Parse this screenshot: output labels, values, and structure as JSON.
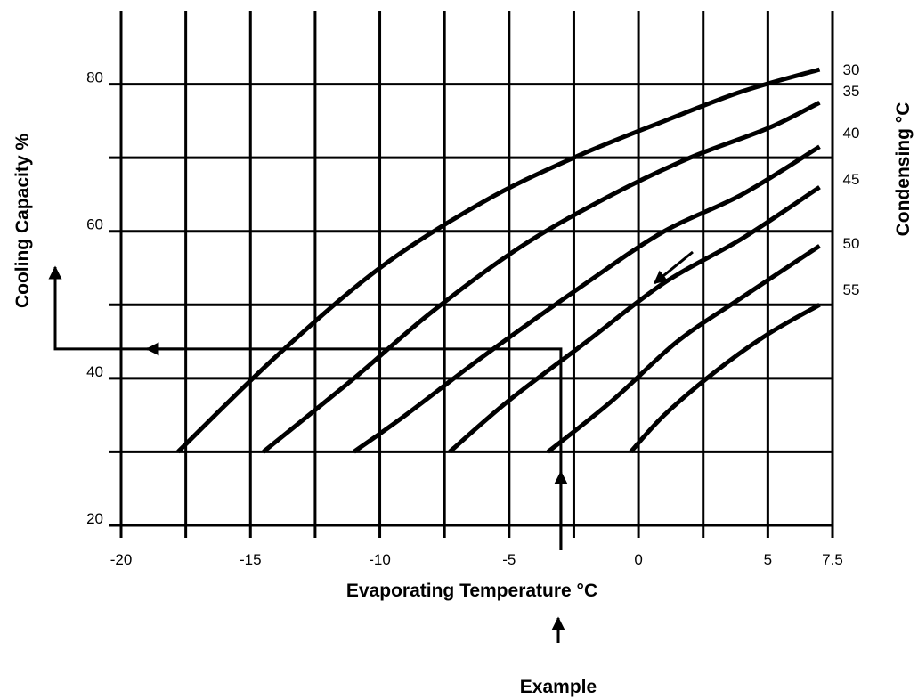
{
  "chart_data": {
    "type": "line",
    "xlabel": "Evaporating Temperature °C",
    "ylabel": "Cooling Capacity %",
    "right_label": "Condensing  °C",
    "example_label": "Example",
    "xlim": [
      -20,
      7.5
    ],
    "ylim": [
      20,
      90
    ],
    "x_ticks": [
      -20,
      -15,
      -10,
      -5,
      0,
      5,
      7.5
    ],
    "y_ticks": [
      20,
      40,
      60,
      80
    ],
    "grid": true,
    "series": [
      {
        "name": "30",
        "x": [
          -17.8,
          -14,
          -10,
          -6,
          -2.5,
          1,
          4,
          7
        ],
        "y": [
          30,
          43,
          55,
          64,
          70,
          75,
          79,
          82
        ]
      },
      {
        "name": "35",
        "x": [
          -14.5,
          -11,
          -8,
          -4.5,
          -1,
          2,
          5,
          7
        ],
        "y": [
          30,
          40,
          49,
          58,
          65,
          70,
          74,
          77.5
        ]
      },
      {
        "name": "40",
        "x": [
          -11,
          -9,
          -6,
          -2,
          1,
          4,
          7
        ],
        "y": [
          30,
          35,
          43,
          53,
          60,
          65,
          71.5
        ]
      },
      {
        "name": "45",
        "x": [
          -7.3,
          -5,
          -2,
          1,
          4,
          7
        ],
        "y": [
          30,
          37,
          45,
          53,
          59,
          66
        ]
      },
      {
        "name": "50",
        "x": [
          -3.5,
          -1,
          1.5,
          4,
          7
        ],
        "y": [
          30,
          37,
          45,
          51,
          58
        ]
      },
      {
        "name": "55",
        "x": [
          -0.3,
          1,
          3,
          5,
          7
        ],
        "y": [
          30,
          35,
          41,
          46,
          50
        ]
      }
    ],
    "example": {
      "x": -3,
      "y": 44
    }
  }
}
